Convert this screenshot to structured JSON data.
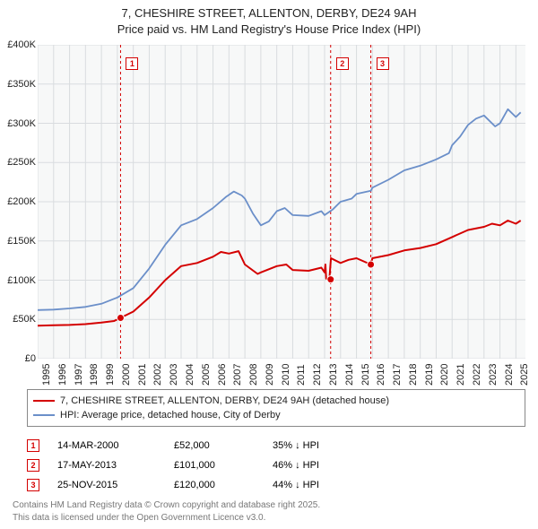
{
  "title": {
    "line1": "7, CHESHIRE STREET, ALLENTON, DERBY, DE24 9AH",
    "line2": "Price paid vs. HM Land Registry's House Price Index (HPI)"
  },
  "chart": {
    "type": "line",
    "background_color": "#ffffff",
    "plot_background_color": "#f7f8f8",
    "grid_color": "#d9dcdf",
    "x_years": [
      1995,
      1996,
      1997,
      1998,
      1999,
      2000,
      2001,
      2002,
      2003,
      2004,
      2005,
      2006,
      2007,
      2008,
      2009,
      2010,
      2011,
      2012,
      2013,
      2014,
      2015,
      2016,
      2017,
      2018,
      2019,
      2020,
      2021,
      2022,
      2023,
      2024,
      2025
    ],
    "xlim": [
      1995,
      2025.6
    ],
    "ylim": [
      0,
      400000
    ],
    "ytick_step": 50000,
    "ytick_labels": [
      "£0",
      "£50K",
      "£100K",
      "£150K",
      "£200K",
      "£250K",
      "£300K",
      "£350K",
      "£400K"
    ],
    "series": [
      {
        "name": "property",
        "label": "7, CHESHIRE STREET, ALLENTON, DERBY, DE24 9AH (detached house)",
        "color": "#d40000",
        "line_width": 2,
        "points": [
          [
            1995,
            42000
          ],
          [
            1996,
            42500
          ],
          [
            1997,
            43000
          ],
          [
            1998,
            44000
          ],
          [
            1999,
            46000
          ],
          [
            1999.8,
            48000
          ],
          [
            2000.2,
            52000
          ],
          [
            2001,
            60000
          ],
          [
            2002,
            78000
          ],
          [
            2003,
            100000
          ],
          [
            2004,
            118000
          ],
          [
            2005,
            122000
          ],
          [
            2006,
            130000
          ],
          [
            2006.5,
            136000
          ],
          [
            2007,
            134000
          ],
          [
            2007.6,
            137000
          ],
          [
            2008,
            120000
          ],
          [
            2008.8,
            108000
          ],
          [
            2009,
            110000
          ],
          [
            2010,
            118000
          ],
          [
            2010.6,
            120000
          ],
          [
            2011,
            113000
          ],
          [
            2012,
            112000
          ],
          [
            2012.8,
            116000
          ],
          [
            2013,
            110000
          ],
          [
            2013.05,
            120000
          ],
          [
            2013.1,
            102000
          ],
          [
            2013.3,
            101000
          ],
          [
            2013.4,
            128000
          ],
          [
            2014,
            122000
          ],
          [
            2014.5,
            126000
          ],
          [
            2015,
            128000
          ],
          [
            2015.9,
            120000
          ],
          [
            2016,
            128000
          ],
          [
            2017,
            132000
          ],
          [
            2018,
            138000
          ],
          [
            2019,
            141000
          ],
          [
            2020,
            146000
          ],
          [
            2021,
            155000
          ],
          [
            2022,
            164000
          ],
          [
            2023,
            168000
          ],
          [
            2023.5,
            172000
          ],
          [
            2024,
            170000
          ],
          [
            2024.5,
            176000
          ],
          [
            2025,
            172000
          ],
          [
            2025.3,
            176000
          ]
        ]
      },
      {
        "name": "hpi",
        "label": "HPI: Average price, detached house, City of Derby",
        "color": "#6b8fc9",
        "line_width": 1.8,
        "points": [
          [
            1995,
            62000
          ],
          [
            1996,
            62500
          ],
          [
            1997,
            64000
          ],
          [
            1998,
            66000
          ],
          [
            1999,
            70000
          ],
          [
            2000,
            78000
          ],
          [
            2001,
            90000
          ],
          [
            2002,
            115000
          ],
          [
            2003,
            145000
          ],
          [
            2004,
            170000
          ],
          [
            2005,
            178000
          ],
          [
            2006,
            192000
          ],
          [
            2006.8,
            206000
          ],
          [
            2007.3,
            213000
          ],
          [
            2007.8,
            208000
          ],
          [
            2008,
            204000
          ],
          [
            2008.5,
            185000
          ],
          [
            2009,
            170000
          ],
          [
            2009.5,
            175000
          ],
          [
            2010,
            188000
          ],
          [
            2010.5,
            192000
          ],
          [
            2011,
            183000
          ],
          [
            2012,
            182000
          ],
          [
            2012.8,
            188000
          ],
          [
            2013,
            183000
          ],
          [
            2013.5,
            190000
          ],
          [
            2014,
            200000
          ],
          [
            2014.7,
            204000
          ],
          [
            2015,
            210000
          ],
          [
            2015.9,
            214000
          ],
          [
            2016,
            218000
          ],
          [
            2017,
            228000
          ],
          [
            2018,
            240000
          ],
          [
            2019,
            246000
          ],
          [
            2020,
            254000
          ],
          [
            2020.8,
            262000
          ],
          [
            2021,
            272000
          ],
          [
            2021.5,
            283000
          ],
          [
            2022,
            298000
          ],
          [
            2022.5,
            306000
          ],
          [
            2023,
            310000
          ],
          [
            2023.7,
            296000
          ],
          [
            2024,
            300000
          ],
          [
            2024.5,
            318000
          ],
          [
            2025,
            308000
          ],
          [
            2025.3,
            314000
          ]
        ]
      }
    ],
    "event_lines": [
      {
        "n": "1",
        "year": 2000.2
      },
      {
        "n": "2",
        "year": 2013.38
      },
      {
        "n": "3",
        "year": 2015.9
      }
    ],
    "event_line_color": "#d40000",
    "sale_markers": [
      {
        "year": 2000.2,
        "value": 52000
      },
      {
        "year": 2013.38,
        "value": 101000
      },
      {
        "year": 2015.9,
        "value": 120000
      }
    ],
    "marker_style": "circle",
    "label_fontsize": 11,
    "title_fontsize": 13
  },
  "legend": {
    "rows": [
      {
        "color": "#d40000",
        "label": "7, CHESHIRE STREET, ALLENTON, DERBY, DE24 9AH (detached house)"
      },
      {
        "color": "#6b8fc9",
        "label": "HPI: Average price, detached house, City of Derby"
      }
    ]
  },
  "events_table": [
    {
      "n": "1",
      "date": "14-MAR-2000",
      "price": "£52,000",
      "hpi": "35% ↓ HPI"
    },
    {
      "n": "2",
      "date": "17-MAY-2013",
      "price": "£101,000",
      "hpi": "46% ↓ HPI"
    },
    {
      "n": "3",
      "date": "25-NOV-2015",
      "price": "£120,000",
      "hpi": "44% ↓ HPI"
    }
  ],
  "attribution": {
    "line1": "Contains HM Land Registry data © Crown copyright and database right 2025.",
    "line2": "This data is licensed under the Open Government Licence v3.0."
  }
}
